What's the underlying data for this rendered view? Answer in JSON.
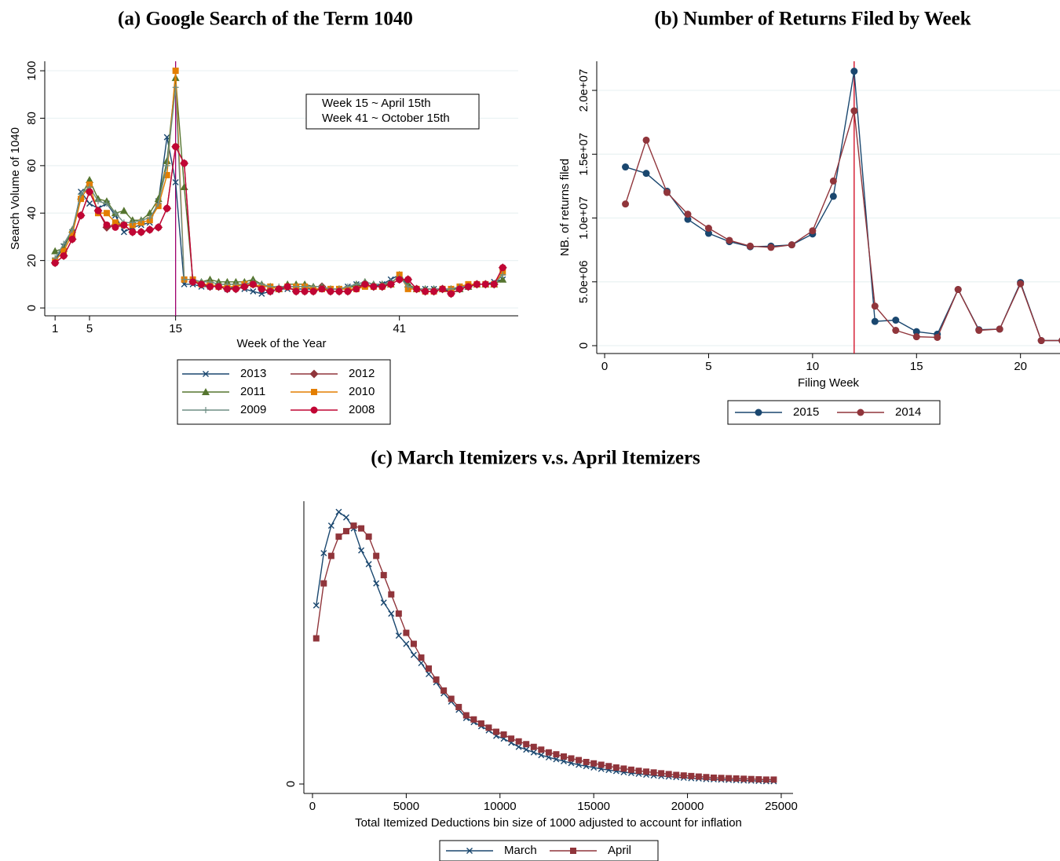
{
  "chart_data": [
    {
      "type": "line",
      "title": "(a) Google Search of the Term 1040",
      "xlabel": "Week of the Year",
      "ylabel": "Search Volume of 1040",
      "x": [
        1,
        2,
        3,
        4,
        5,
        6,
        7,
        8,
        9,
        10,
        11,
        12,
        13,
        14,
        15,
        16,
        17,
        18,
        19,
        20,
        21,
        22,
        23,
        24,
        25,
        26,
        27,
        28,
        29,
        30,
        31,
        32,
        33,
        34,
        35,
        36,
        37,
        38,
        39,
        40,
        41,
        42,
        43,
        44,
        45,
        46,
        47,
        48,
        49,
        50,
        51,
        52,
        53
      ],
      "xlim": [
        -0.2,
        54.8
      ],
      "xticks": [
        1,
        5,
        15,
        41
      ],
      "ylim": [
        -3.3,
        104
      ],
      "yticks": [
        0,
        20,
        40,
        60,
        80,
        100
      ],
      "grid": true,
      "vline": 15,
      "vline_color": "#a0006e",
      "annotation": [
        "Week 15 ~ April 15th",
        "Week 41 ~ October 15th"
      ],
      "series": [
        {
          "name": "2013",
          "color": "#1a476f",
          "marker": "x",
          "values": [
            20,
            26,
            32,
            49,
            44,
            42,
            44,
            39,
            32,
            34,
            35,
            36,
            45,
            72,
            53,
            10,
            10,
            9,
            9,
            9,
            8,
            9,
            8,
            7,
            6,
            7,
            8,
            8,
            8,
            8,
            8,
            8,
            8,
            8,
            9,
            10,
            9,
            9,
            10,
            12,
            14,
            9,
            8,
            8,
            8,
            8,
            7,
            9,
            9,
            10,
            10,
            11,
            12
          ]
        },
        {
          "name": "2012",
          "color": "#90353b",
          "marker": "diamond",
          "values": [
            19,
            22,
            29,
            39,
            49,
            41,
            34,
            35,
            35,
            32,
            32,
            33,
            34,
            42,
            68,
            61,
            11,
            10,
            9,
            9,
            8,
            8,
            9,
            10,
            8,
            7,
            8,
            9,
            7,
            7,
            7,
            9,
            7,
            7,
            7,
            9,
            10,
            9,
            9,
            10,
            12,
            12,
            8,
            7,
            7,
            8,
            6,
            8,
            9,
            10,
            10,
            10,
            17
          ]
        },
        {
          "name": "2011",
          "color": "#55752f",
          "marker": "triangle",
          "values": [
            24,
            25,
            33,
            47,
            54,
            46,
            45,
            40,
            41,
            37,
            37,
            40,
            46,
            62,
            97,
            51,
            12,
            11,
            12,
            11,
            11,
            11,
            11,
            12,
            10,
            9,
            8,
            10,
            10,
            10,
            9,
            9,
            8,
            8,
            8,
            10,
            11,
            10,
            10,
            10,
            14,
            10,
            8,
            8,
            8,
            8,
            8,
            8,
            9,
            10,
            10,
            10,
            12
          ]
        },
        {
          "name": "2010",
          "color": "#e37e00",
          "marker": "square",
          "values": [
            20,
            24,
            31,
            46,
            52,
            40,
            40,
            36,
            35,
            35,
            36,
            37,
            43,
            56,
            100,
            12,
            12,
            10,
            10,
            9,
            9,
            9,
            10,
            10,
            9,
            9,
            8,
            9,
            9,
            9,
            8,
            8,
            8,
            8,
            8,
            8,
            9,
            9,
            9,
            10,
            14,
            8,
            8,
            7,
            7,
            8,
            8,
            9,
            10,
            10,
            10,
            10,
            15
          ]
        },
        {
          "name": "2009",
          "color": "#6e8e84",
          "marker": "plus",
          "values": [
            21,
            27,
            33,
            48,
            51,
            45,
            44,
            40,
            36,
            36,
            37,
            38,
            44,
            60,
            93,
            12,
            12,
            11,
            11,
            10,
            10,
            10,
            10,
            11,
            10,
            9,
            9,
            9,
            9,
            9,
            9,
            9,
            8,
            8,
            9,
            10,
            11,
            10,
            10,
            11,
            13,
            9,
            8,
            8,
            8,
            8,
            8,
            9,
            9,
            10,
            10,
            10,
            14
          ]
        },
        {
          "name": "2008",
          "color": "#c10534",
          "marker": "circle",
          "values": [
            19,
            22,
            29,
            39,
            49,
            41,
            35,
            34,
            35,
            32,
            32,
            33,
            34,
            42,
            68,
            61,
            11,
            10,
            9,
            9,
            8,
            8,
            9,
            10,
            8,
            7,
            8,
            9,
            7,
            7,
            7,
            8,
            7,
            7,
            7,
            8,
            10,
            9,
            9,
            10,
            12,
            12,
            8,
            7,
            7,
            8,
            6,
            8,
            9,
            10,
            10,
            10,
            17
          ]
        }
      ]
    },
    {
      "type": "line",
      "title": "(b) Number of Returns Filed by Week",
      "xlabel": "Filing Week",
      "ylabel": "NB. of returns filed",
      "x": [
        1,
        2,
        3,
        4,
        5,
        6,
        7,
        8,
        9,
        10,
        11,
        12,
        13,
        14,
        15,
        16,
        17,
        18,
        19,
        20,
        21,
        22
      ],
      "xlim": [
        -0.38,
        21.9
      ],
      "xticks": [
        0,
        5,
        10,
        15,
        20
      ],
      "ylim": [
        -615000,
        22280000
      ],
      "yticks": [
        0,
        {
          "value": 5000000,
          "label": "5.0e+06"
        },
        {
          "value": 10000000,
          "label": "1.0e+07"
        },
        {
          "value": 15000000,
          "label": "1.5e+07"
        },
        {
          "value": 20000000,
          "label": "2.0e+07"
        }
      ],
      "grid": true,
      "vline": 12,
      "vline_color": "#d0021b",
      "series": [
        {
          "name": "2015",
          "color": "#1a476f",
          "marker": "circle",
          "values": [
            14000000,
            13500000,
            12100000,
            9900000,
            8800000,
            8150000,
            7750000,
            7800000,
            7900000,
            8750000,
            11700000,
            21500000,
            1900000,
            2000000,
            1100000,
            900000,
            4400000,
            1250000,
            1300000,
            4950000,
            400000,
            400000
          ]
        },
        {
          "name": "2014",
          "color": "#90353b",
          "marker": "circle",
          "values": [
            11100000,
            16100000,
            12000000,
            10300000,
            9200000,
            8250000,
            7800000,
            7700000,
            7900000,
            9000000,
            12900000,
            18400000,
            3100000,
            1200000,
            700000,
            650000,
            4400000,
            1200000,
            1300000,
            4850000,
            400000,
            400000
          ]
        }
      ]
    },
    {
      "type": "line",
      "title": "(c) March Itemizers v.s. April Itemizers",
      "xlabel": "Total Itemized Deductions bin size of 1000 adjusted to account for inflation",
      "x": [
        200,
        600,
        1000,
        1400,
        1800,
        2200,
        2600,
        3000,
        3400,
        3800,
        4200,
        4600,
        5000,
        5400,
        5800,
        6200,
        6600,
        7000,
        7400,
        7800,
        8200,
        8600,
        9000,
        9400,
        9800,
        10200,
        10600,
        11000,
        11400,
        11800,
        12200,
        12600,
        13000,
        13400,
        13800,
        14200,
        14600,
        15000,
        15400,
        15800,
        16200,
        16600,
        17000,
        17400,
        17800,
        18200,
        18600,
        19000,
        19400,
        19800,
        20200,
        20600,
        21000,
        21400,
        21800,
        22200,
        22600,
        23000,
        23400,
        23800,
        24200,
        24600
      ],
      "xlim": [
        -460,
        25630
      ],
      "xticks": [
        0,
        5000,
        10000,
        15000,
        20000,
        25000
      ],
      "ylim": [
        -3.43,
        102.9
      ],
      "yticks": [
        0
      ],
      "grid": false,
      "series": [
        {
          "name": "March",
          "color": "#1a476f",
          "marker": "x",
          "values": [
            65,
            84,
            94,
            99,
            97,
            93,
            85,
            80,
            73,
            66,
            62,
            54,
            51,
            47,
            44,
            40,
            37,
            33,
            30,
            27,
            24,
            22.5,
            21,
            19.5,
            17.5,
            16.5,
            15,
            13.5,
            12.5,
            11.5,
            10.5,
            9.7,
            9,
            8.3,
            7.6,
            7,
            6.5,
            6,
            5.5,
            5.1,
            4.7,
            4.3,
            4,
            3.7,
            3.4,
            3.1,
            2.9,
            2.7,
            2.5,
            2.3,
            2.1,
            2,
            1.8,
            1.7,
            1.6,
            1.5,
            1.4,
            1.3,
            1.2,
            1.1,
            1,
            1
          ]
        },
        {
          "name": "April",
          "color": "#90353b",
          "marker": "square",
          "values": [
            53,
            73,
            83,
            90,
            92,
            94,
            93,
            90,
            83,
            76,
            69,
            62,
            55,
            51,
            46,
            42,
            38,
            34,
            31,
            28,
            25,
            23.5,
            22,
            20.5,
            19,
            18,
            16.5,
            15.5,
            14.5,
            13.5,
            12.5,
            11.5,
            10.8,
            10,
            9.3,
            8.7,
            8,
            7.5,
            7,
            6.5,
            6,
            5.6,
            5.2,
            4.8,
            4.5,
            4.2,
            3.9,
            3.6,
            3.3,
            3.1,
            2.9,
            2.7,
            2.5,
            2.3,
            2.2,
            2.1,
            2,
            1.9,
            1.8,
            1.7,
            1.6,
            1.6
          ]
        }
      ]
    }
  ]
}
